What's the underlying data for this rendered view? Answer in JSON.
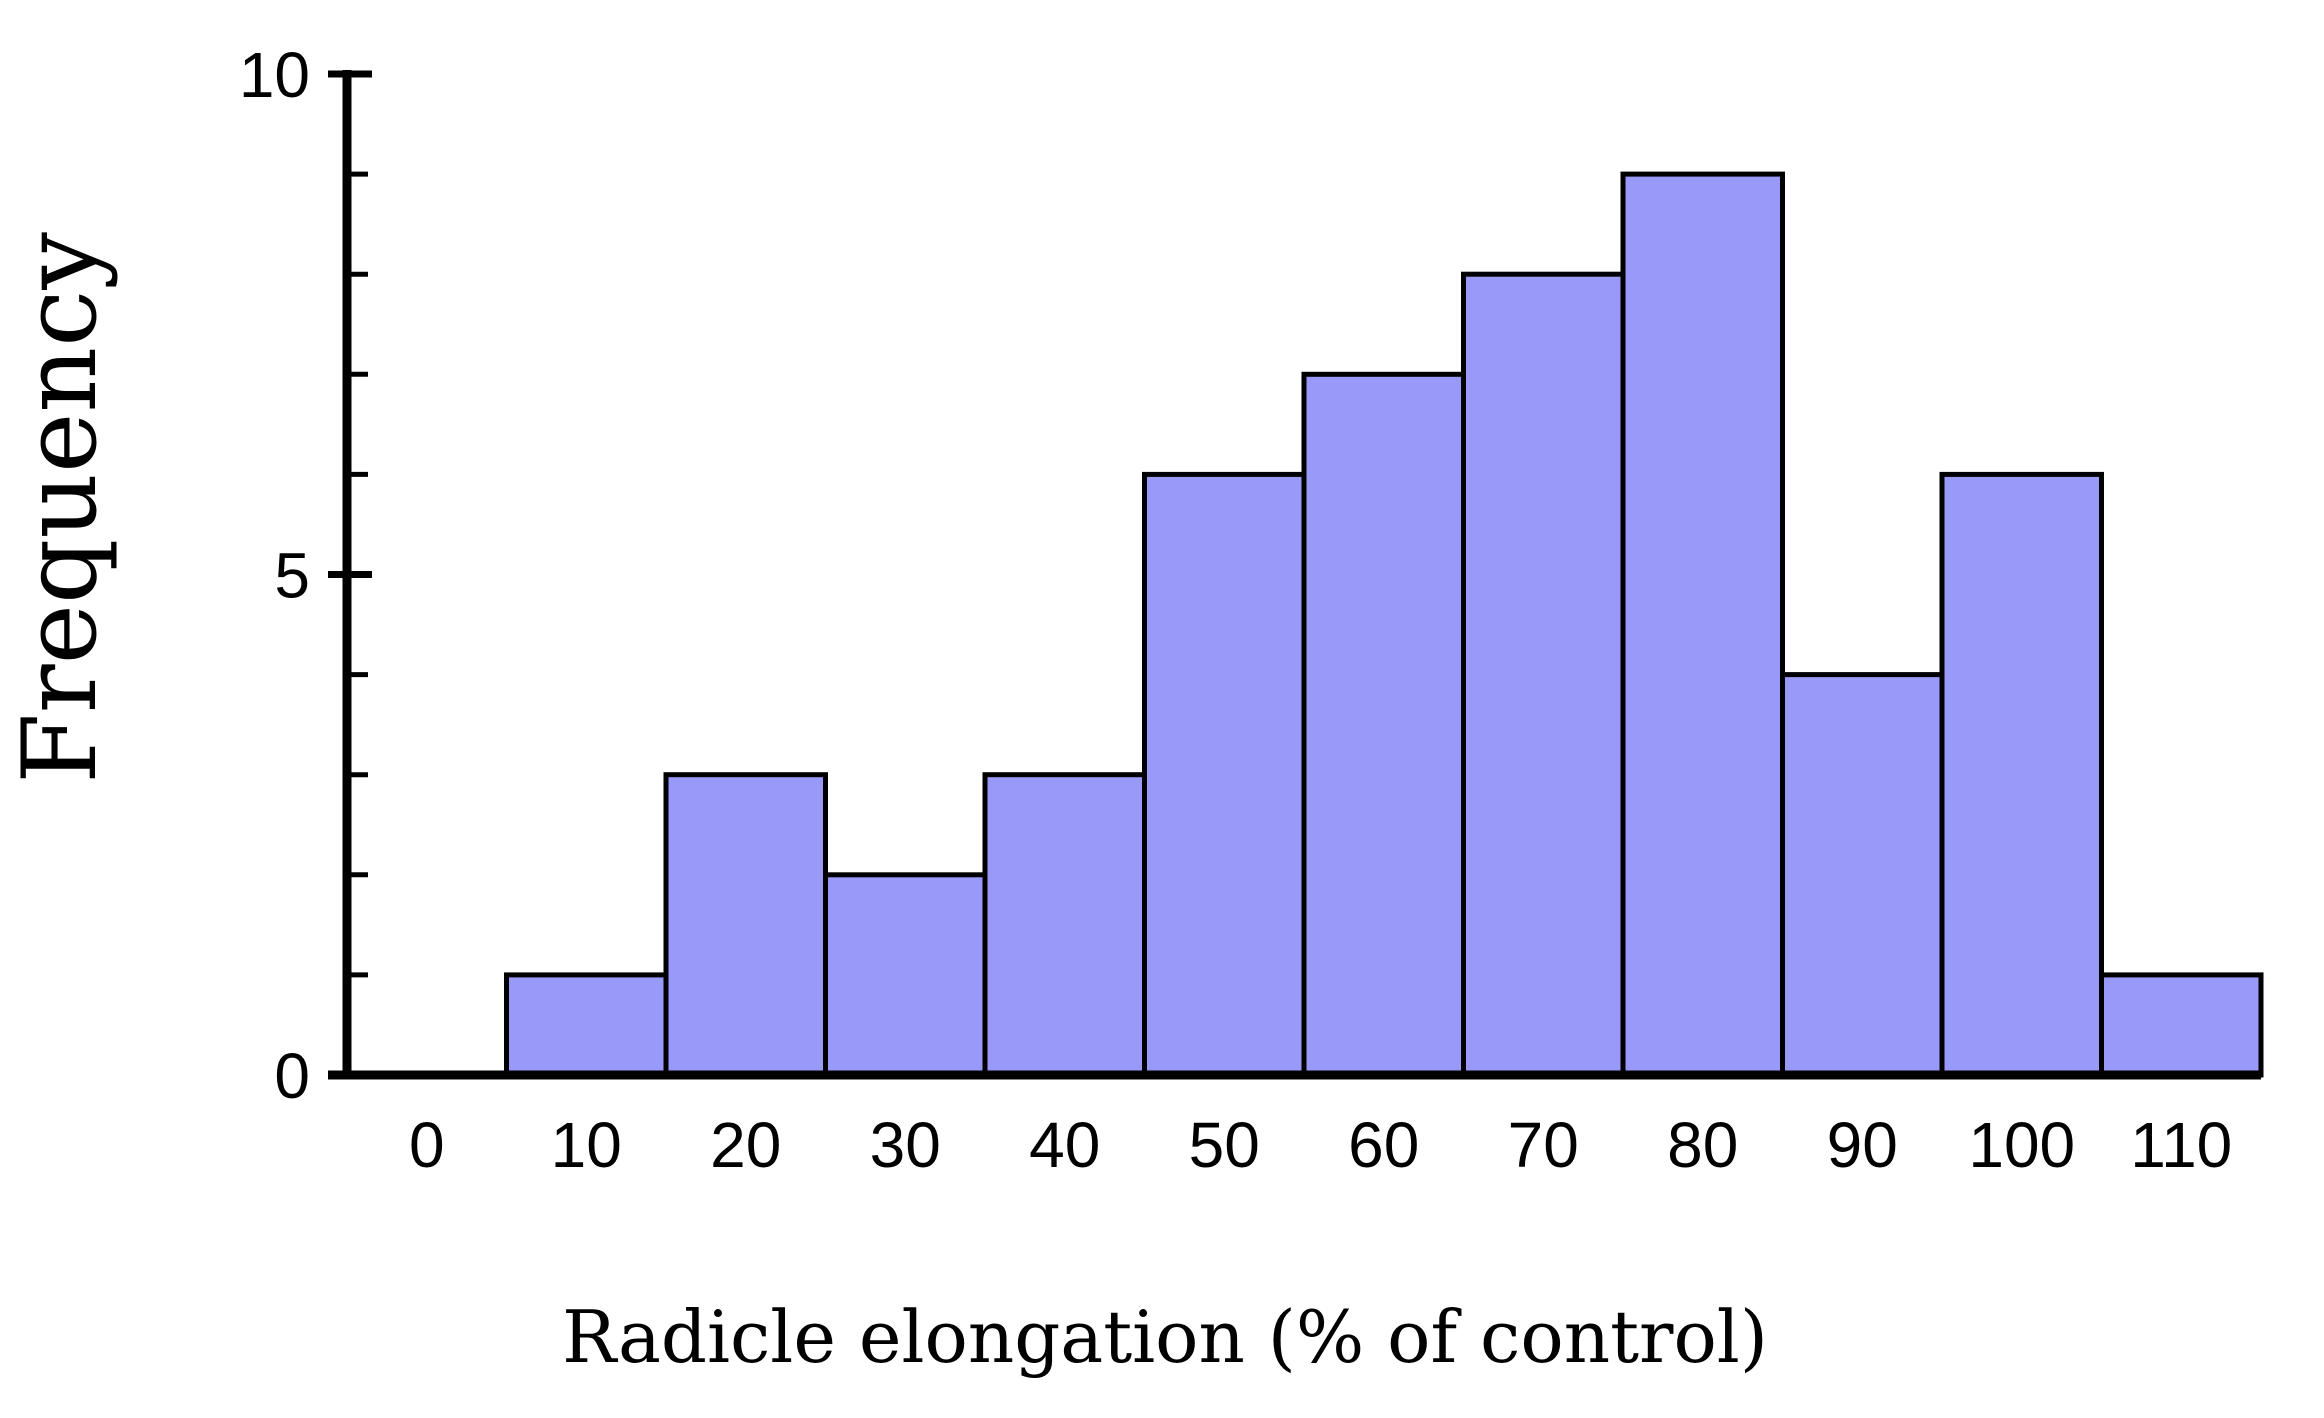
{
  "figure": {
    "background": "#ffffff"
  },
  "chart_data": {
    "type": "bar",
    "subtype": "histogram",
    "title": "",
    "xlabel": "Radicle elongation (% of control)",
    "ylabel": "Frequency",
    "bin_width": 10,
    "bin_centers": [
      10,
      20,
      30,
      40,
      50,
      60,
      70,
      80,
      90,
      100,
      110
    ],
    "values": [
      1,
      3,
      2,
      3,
      6,
      7,
      8,
      9,
      4,
      6,
      1
    ],
    "x_tick_values": [
      0,
      10,
      20,
      30,
      40,
      50,
      60,
      70,
      80,
      90,
      100,
      110
    ],
    "x_tick_labels": [
      "0",
      "10",
      "20",
      "30",
      "40",
      "50",
      "60",
      "70",
      "80",
      "90",
      "100",
      "110"
    ],
    "y_major_tick_values": [
      0,
      5,
      10
    ],
    "y_major_tick_labels": [
      "0",
      "5",
      "10"
    ],
    "y_minor_tick_values": [
      1,
      2,
      3,
      4,
      6,
      7,
      8,
      9
    ],
    "xlim": [
      -5,
      115
    ],
    "ylim": [
      0,
      10
    ],
    "grid": false,
    "legend": null,
    "colors": {
      "bar_fill": "#9999fa",
      "bar_border": "#000000",
      "axis": "#000000",
      "text": "#000000"
    }
  }
}
